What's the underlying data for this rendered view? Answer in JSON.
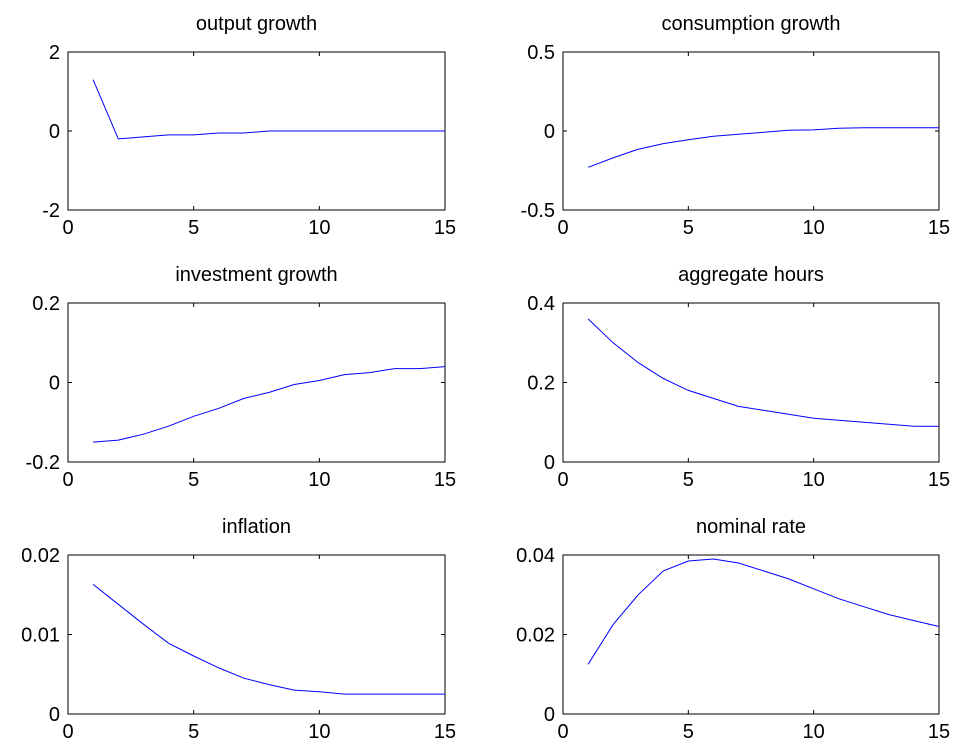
{
  "chart_data": [
    {
      "type": "line",
      "title": "output growth",
      "xlim": [
        0,
        15
      ],
      "ylim": [
        -2,
        2
      ],
      "xticks": [
        0,
        5,
        10,
        15
      ],
      "xtick_labels": [
        "0",
        "5",
        "10",
        "15"
      ],
      "yticks": [
        -2,
        0,
        2
      ],
      "ytick_labels": [
        "-2",
        "0",
        "2"
      ],
      "color": "#0000ff",
      "x": [
        1,
        2,
        3,
        4,
        5,
        6,
        7,
        8,
        9,
        10,
        11,
        12,
        13,
        14,
        15
      ],
      "y": [
        1.3,
        -0.2,
        -0.15,
        -0.1,
        -0.1,
        -0.05,
        -0.05,
        0,
        0,
        0,
        0,
        0,
        0,
        0,
        0
      ]
    },
    {
      "type": "line",
      "title": "consumption growth",
      "xlim": [
        0,
        15
      ],
      "ylim": [
        -0.5,
        0.5
      ],
      "xticks": [
        0,
        5,
        10,
        15
      ],
      "xtick_labels": [
        "0",
        "5",
        "10",
        "15"
      ],
      "yticks": [
        -0.5,
        0,
        0.5
      ],
      "ytick_labels": [
        "-0.5",
        "0",
        "0.5"
      ],
      "color": "#0000ff",
      "x": [
        1,
        2,
        3,
        4,
        5,
        6,
        7,
        8,
        9,
        10,
        11,
        12,
        13,
        14,
        15
      ],
      "y": [
        -0.23,
        -0.17,
        -0.115,
        -0.08,
        -0.055,
        -0.033,
        -0.02,
        -0.008,
        0.005,
        0.007,
        0.018,
        0.02,
        0.02,
        0.02,
        0.02
      ]
    },
    {
      "type": "line",
      "title": "investment growth",
      "xlim": [
        0,
        15
      ],
      "ylim": [
        -0.2,
        0.2
      ],
      "xticks": [
        0,
        5,
        10,
        15
      ],
      "xtick_labels": [
        "0",
        "5",
        "10",
        "15"
      ],
      "yticks": [
        -0.2,
        0,
        0.2
      ],
      "ytick_labels": [
        "-0.2",
        "0",
        "0.2"
      ],
      "color": "#0000ff",
      "x": [
        1,
        2,
        3,
        4,
        5,
        6,
        7,
        8,
        9,
        10,
        11,
        12,
        13,
        14,
        15
      ],
      "y": [
        -0.15,
        -0.145,
        -0.13,
        -0.11,
        -0.085,
        -0.065,
        -0.04,
        -0.025,
        -0.005,
        0.005,
        0.02,
        0.025,
        0.035,
        0.035,
        0.04
      ]
    },
    {
      "type": "line",
      "title": "aggregate hours",
      "xlim": [
        0,
        15
      ],
      "ylim": [
        0,
        0.4
      ],
      "xticks": [
        0,
        5,
        10,
        15
      ],
      "xtick_labels": [
        "0",
        "5",
        "10",
        "15"
      ],
      "yticks": [
        0,
        0.2,
        0.4
      ],
      "ytick_labels": [
        "0",
        "0.2",
        "0.4"
      ],
      "color": "#0000ff",
      "x": [
        1,
        2,
        3,
        4,
        5,
        6,
        7,
        8,
        9,
        10,
        11,
        12,
        13,
        14,
        15
      ],
      "y": [
        0.36,
        0.3,
        0.25,
        0.21,
        0.18,
        0.16,
        0.14,
        0.13,
        0.12,
        0.11,
        0.105,
        0.1,
        0.095,
        0.09,
        0.09
      ]
    },
    {
      "type": "line",
      "title": "inflation",
      "xlim": [
        0,
        15
      ],
      "ylim": [
        0,
        0.02
      ],
      "xticks": [
        0,
        5,
        10,
        15
      ],
      "xtick_labels": [
        "0",
        "5",
        "10",
        "15"
      ],
      "yticks": [
        0,
        0.01,
        0.02
      ],
      "ytick_labels": [
        "0",
        "0.01",
        "0.02"
      ],
      "color": "#0000ff",
      "x": [
        1,
        2,
        3,
        4,
        5,
        6,
        7,
        8,
        9,
        10,
        11,
        12,
        13,
        14,
        15
      ],
      "y": [
        0.0163,
        0.0138,
        0.0113,
        0.0089,
        0.0073,
        0.0058,
        0.0045,
        0.0037,
        0.003,
        0.0028,
        0.0025,
        0.0025,
        0.0025,
        0.0025,
        0.0025
      ]
    },
    {
      "type": "line",
      "title": "nominal rate",
      "xlim": [
        0,
        15
      ],
      "ylim": [
        0,
        0.04
      ],
      "xticks": [
        0,
        5,
        10,
        15
      ],
      "xtick_labels": [
        "0",
        "5",
        "10",
        "15"
      ],
      "yticks": [
        0,
        0.02,
        0.04
      ],
      "ytick_labels": [
        "0",
        "0.02",
        "0.04"
      ],
      "color": "#0000ff",
      "x": [
        1,
        2,
        3,
        4,
        5,
        6,
        7,
        8,
        9,
        10,
        11,
        12,
        13,
        14,
        15
      ],
      "y": [
        0.0125,
        0.0225,
        0.03,
        0.036,
        0.0385,
        0.039,
        0.038,
        0.036,
        0.034,
        0.0315,
        0.029,
        0.027,
        0.025,
        0.0235,
        0.022
      ]
    }
  ]
}
